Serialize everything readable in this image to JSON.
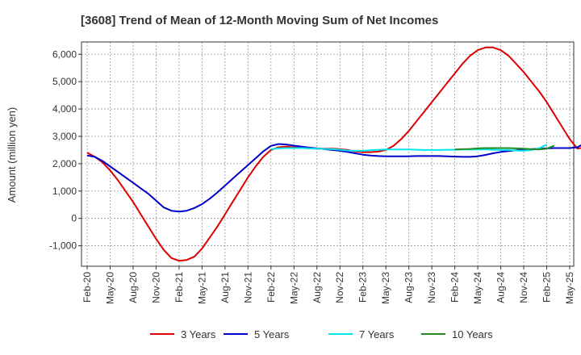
{
  "chart_data": {
    "type": "line",
    "title": "[3608]  Trend of Mean of 12-Month Moving Sum of Net Incomes",
    "ylabel": "Amount (million yen)",
    "xlabel": "",
    "ylim": [
      -1750,
      6450
    ],
    "yticks": [
      -1000,
      0,
      1000,
      2000,
      3000,
      4000,
      5000,
      6000
    ],
    "ytick_labels": [
      "-1,000",
      "0",
      "1,000",
      "2,000",
      "3,000",
      "4,000",
      "5,000",
      "6,000"
    ],
    "x_start": "Feb-20",
    "xtick_labels": [
      "Feb-20",
      "May-20",
      "Aug-20",
      "Nov-20",
      "Feb-21",
      "May-21",
      "Aug-21",
      "Nov-21",
      "Feb-22",
      "May-22",
      "Aug-22",
      "Nov-22",
      "Feb-23",
      "May-23",
      "Aug-23",
      "Nov-23",
      "Feb-24",
      "May-24",
      "Aug-24",
      "Nov-24",
      "Feb-25",
      "May-25"
    ],
    "grid": true,
    "legend": "bottom",
    "series": [
      {
        "name": "3 Years",
        "color": "#dd0000",
        "start": "Feb-20",
        "values": [
          2400,
          2250,
          2050,
          1750,
          1400,
          1000,
          600,
          150,
          -300,
          -750,
          -1150,
          -1450,
          -1550,
          -1520,
          -1400,
          -1100,
          -700,
          -300,
          150,
          600,
          1050,
          1500,
          1900,
          2250,
          2500,
          2600,
          2620,
          2600,
          2580,
          2560,
          2550,
          2550,
          2550,
          2530,
          2500,
          2450,
          2420,
          2420,
          2440,
          2500,
          2650,
          2900,
          3200,
          3550,
          3900,
          4250,
          4600,
          4950,
          5300,
          5650,
          5950,
          6150,
          6250,
          6250,
          6150,
          5950,
          5650,
          5350,
          5000,
          4650,
          4250,
          3800,
          3350,
          2900,
          2550,
          2600,
          3000
        ]
      },
      {
        "name": "5 Years",
        "color": "#0000cc",
        "start": "Feb-20",
        "values": [
          2300,
          2250,
          2100,
          1900,
          1700,
          1500,
          1300,
          1100,
          900,
          650,
          400,
          280,
          250,
          280,
          380,
          520,
          720,
          950,
          1200,
          1450,
          1700,
          1950,
          2200,
          2450,
          2650,
          2720,
          2700,
          2660,
          2620,
          2590,
          2560,
          2530,
          2500,
          2470,
          2430,
          2380,
          2330,
          2300,
          2280,
          2270,
          2270,
          2270,
          2270,
          2280,
          2280,
          2280,
          2280,
          2270,
          2260,
          2250,
          2250,
          2270,
          2320,
          2380,
          2430,
          2460,
          2490,
          2510,
          2530,
          2550,
          2560,
          2570,
          2570,
          2570,
          2600,
          2750,
          3000
        ]
      },
      {
        "name": "7 Years",
        "color": "#00e5ee",
        "start": "Feb-22",
        "values": [
          2530,
          2560,
          2570,
          2570,
          2570,
          2560,
          2550,
          2540,
          2530,
          2510,
          2480,
          2470,
          2470,
          2490,
          2510,
          2520,
          2520,
          2520,
          2520,
          2510,
          2500,
          2500,
          2500,
          2510,
          2510,
          2520,
          2520,
          2520,
          2520,
          2510,
          2500,
          2500,
          2480,
          2470,
          2500,
          2560,
          2700
        ]
      },
      {
        "name": "10 Years",
        "color": "#228b22",
        "start": "Feb-24",
        "values": [
          2520,
          2530,
          2540,
          2560,
          2570,
          2570,
          2570,
          2570,
          2560,
          2550,
          2530,
          2520,
          2550,
          2660
        ]
      }
    ]
  }
}
